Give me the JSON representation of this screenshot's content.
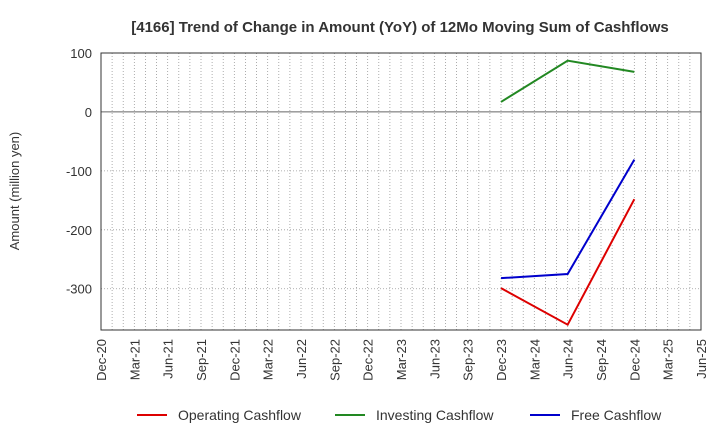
{
  "chart_data": {
    "type": "line",
    "title": "[4166]  Trend of Change in Amount (YoY) of 12Mo Moving Sum of Cashflows",
    "xlabel": "",
    "ylabel": "Amount (million yen)",
    "categories": [
      "Dec-20",
      "Mar-21",
      "Jun-21",
      "Sep-21",
      "Dec-21",
      "Mar-22",
      "Jun-22",
      "Sep-22",
      "Dec-22",
      "Mar-23",
      "Jun-23",
      "Sep-23",
      "Dec-23",
      "Mar-24",
      "Jun-24",
      "Sep-24",
      "Dec-24",
      "Mar-25",
      "Jun-25"
    ],
    "ylim": [
      -370,
      100
    ],
    "yticks": [
      100,
      0,
      -100,
      -200,
      -300
    ],
    "grid": true,
    "legend_position": "bottom",
    "series": [
      {
        "name": "Operating Cashflow",
        "color": "#dd0000",
        "values": [
          null,
          null,
          null,
          null,
          null,
          null,
          null,
          null,
          null,
          null,
          null,
          null,
          -299,
          null,
          -361,
          null,
          -148,
          null,
          null
        ]
      },
      {
        "name": "Investing Cashflow",
        "color": "#228822",
        "values": [
          null,
          null,
          null,
          null,
          null,
          null,
          null,
          null,
          null,
          null,
          null,
          null,
          17,
          null,
          87,
          null,
          68,
          null,
          null
        ]
      },
      {
        "name": "Free Cashflow",
        "color": "#0000cc",
        "values": [
          null,
          null,
          null,
          null,
          null,
          null,
          null,
          null,
          null,
          null,
          null,
          null,
          -282,
          null,
          -275,
          null,
          -81,
          null,
          null
        ]
      }
    ]
  }
}
